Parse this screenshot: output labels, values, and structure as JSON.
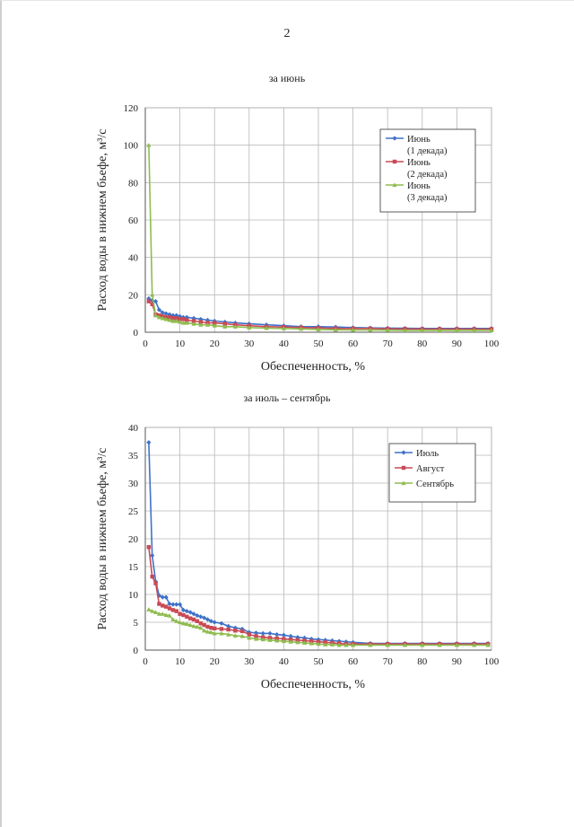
{
  "page": {
    "number": "2"
  },
  "chart_data": [
    {
      "type": "line",
      "caption": "за июнь",
      "xlabel": "Обеспеченность, %",
      "ylabel": "Расход воды в нижнем бьефе, м³/с",
      "xlim": [
        0,
        100
      ],
      "ylim": [
        0,
        120
      ],
      "xticks": [
        0,
        10,
        20,
        30,
        40,
        50,
        60,
        70,
        80,
        90,
        100
      ],
      "yticks": [
        0,
        20,
        40,
        60,
        80,
        100,
        120
      ],
      "grid": true,
      "legend_position": "top-right",
      "series": [
        {
          "name": "Июнь (1 декада)",
          "legend_lines": [
            "Июнь",
            "(1 декада)"
          ],
          "color": "#3f72c8",
          "marker": "diamond",
          "x": [
            1,
            2,
            3,
            4,
            5,
            6,
            7,
            8,
            9,
            10,
            11,
            12,
            14,
            16,
            18,
            20,
            23,
            26,
            30,
            35,
            40,
            45,
            50,
            55,
            60,
            65,
            70,
            75,
            80,
            85,
            90,
            95,
            100
          ],
          "y": [
            18,
            17,
            16.5,
            12,
            10.5,
            10,
            9.5,
            9,
            9,
            8.5,
            8,
            8,
            7.5,
            7,
            6.5,
            6,
            5.5,
            5,
            4.5,
            4,
            3.5,
            3,
            3,
            2.8,
            2.5,
            2.3,
            2.2,
            2.1,
            2,
            2,
            2,
            2,
            2
          ]
        },
        {
          "name": "Июнь (2 декада)",
          "legend_lines": [
            "Июнь",
            "(2 декада)"
          ],
          "color": "#c94a55",
          "marker": "square",
          "x": [
            1,
            2,
            3,
            4,
            5,
            6,
            7,
            8,
            9,
            10,
            11,
            12,
            14,
            16,
            18,
            20,
            23,
            26,
            30,
            35,
            40,
            45,
            50,
            55,
            60,
            65,
            70,
            75,
            80,
            85,
            90,
            95,
            100
          ],
          "y": [
            16.5,
            15,
            9.5,
            9,
            8.5,
            8,
            8,
            7.5,
            7.5,
            7,
            7,
            6.5,
            6,
            5.5,
            5,
            5,
            4.5,
            4,
            3.5,
            3,
            2.8,
            2.5,
            2.3,
            2,
            2,
            2,
            1.8,
            1.8,
            1.7,
            1.7,
            1.7,
            1.7,
            1.7
          ]
        },
        {
          "name": "Июнь (3 декада)",
          "legend_lines": [
            "Июнь",
            "(3 декада)"
          ],
          "color": "#8fbc4f",
          "marker": "triangle",
          "x": [
            1,
            2,
            3,
            4,
            5,
            6,
            7,
            8,
            9,
            10,
            11,
            12,
            14,
            16,
            18,
            20,
            23,
            26,
            30,
            35,
            40,
            45,
            50,
            55,
            60,
            65,
            70,
            75,
            80,
            85,
            90,
            95,
            100
          ],
          "y": [
            100,
            20,
            9,
            8,
            7.5,
            7,
            6.5,
            6,
            6,
            5.5,
            5,
            5,
            4.5,
            4,
            4,
            3.5,
            3,
            3,
            2.5,
            2.2,
            2,
            1.8,
            1.5,
            1.3,
            1.2,
            1.2,
            1.1,
            1,
            1,
            1,
            1,
            1,
            1
          ]
        }
      ]
    },
    {
      "type": "line",
      "caption": "за июль – сентябрь",
      "xlabel": "Обеспеченность, %",
      "ylabel": "Расход воды в нижнем бьефе, м³/с",
      "xlim": [
        0,
        100
      ],
      "ylim": [
        0,
        40
      ],
      "xticks": [
        0,
        10,
        20,
        30,
        40,
        50,
        60,
        70,
        80,
        90,
        100
      ],
      "yticks": [
        0,
        5,
        10,
        15,
        20,
        25,
        30,
        35,
        40
      ],
      "grid": true,
      "legend_position": "top-right",
      "series": [
        {
          "name": "Июль",
          "legend_lines": [
            "Июль"
          ],
          "color": "#3f72c8",
          "marker": "diamond",
          "x": [
            1,
            2,
            3,
            4,
            5,
            6,
            7,
            8,
            9,
            10,
            11,
            12,
            13,
            14,
            15,
            16,
            17,
            18,
            19,
            20,
            22,
            24,
            26,
            28,
            30,
            32,
            34,
            36,
            38,
            40,
            42,
            44,
            46,
            48,
            50,
            52,
            54,
            56,
            58,
            60,
            65,
            70,
            75,
            80,
            85,
            90,
            95,
            99
          ],
          "y": [
            37.3,
            17,
            12.3,
            9.8,
            9.5,
            9.5,
            8.3,
            8.2,
            8.2,
            8.2,
            7.2,
            7,
            6.8,
            6.5,
            6.2,
            6,
            5.8,
            5.5,
            5.2,
            5,
            4.8,
            4.3,
            4,
            3.8,
            3.2,
            3.1,
            3,
            3,
            2.8,
            2.7,
            2.5,
            2.3,
            2.2,
            2,
            1.9,
            1.8,
            1.7,
            1.6,
            1.5,
            1.4,
            1.2,
            1.2,
            1.2,
            1.2,
            1.2,
            1.2,
            1.2,
            1.2
          ]
        },
        {
          "name": "Август",
          "legend_lines": [
            "Август"
          ],
          "color": "#c94a55",
          "marker": "square",
          "x": [
            1,
            2,
            3,
            4,
            5,
            6,
            7,
            8,
            9,
            10,
            11,
            12,
            13,
            14,
            15,
            16,
            17,
            18,
            19,
            20,
            22,
            24,
            26,
            28,
            30,
            32,
            34,
            36,
            38,
            40,
            42,
            44,
            46,
            48,
            50,
            52,
            54,
            56,
            58,
            60,
            65,
            70,
            75,
            80,
            85,
            90,
            95,
            99
          ],
          "y": [
            18.5,
            13.2,
            12,
            8.3,
            8,
            7.8,
            7.5,
            7.2,
            7,
            6.5,
            6.3,
            6,
            5.7,
            5.5,
            5.2,
            4.8,
            4.5,
            4.2,
            4,
            3.9,
            3.8,
            3.7,
            3.5,
            3.4,
            2.8,
            2.5,
            2.3,
            2.2,
            2.1,
            2,
            1.9,
            1.8,
            1.7,
            1.6,
            1.5,
            1.4,
            1.3,
            1.2,
            1.1,
            1.1,
            1.1,
            1.1,
            1.1,
            1.1,
            1.1,
            1.1,
            1.1,
            1.1
          ]
        },
        {
          "name": "Сентябрь",
          "legend_lines": [
            "Сентябрь"
          ],
          "color": "#8fbc4f",
          "marker": "triangle",
          "x": [
            1,
            2,
            3,
            4,
            5,
            6,
            7,
            8,
            9,
            10,
            11,
            12,
            13,
            14,
            15,
            16,
            17,
            18,
            19,
            20,
            22,
            24,
            26,
            28,
            30,
            32,
            34,
            36,
            38,
            40,
            42,
            44,
            46,
            48,
            50,
            52,
            54,
            56,
            58,
            60,
            65,
            70,
            75,
            80,
            85,
            90,
            95,
            99
          ],
          "y": [
            7.3,
            7,
            6.8,
            6.5,
            6.5,
            6.3,
            6.2,
            5.5,
            5.2,
            5,
            4.8,
            4.7,
            4.5,
            4.3,
            4.2,
            4,
            3.5,
            3.3,
            3.2,
            3,
            3,
            2.8,
            2.6,
            2.5,
            2.2,
            2,
            1.9,
            1.8,
            1.7,
            1.6,
            1.5,
            1.4,
            1.3,
            1.2,
            1.1,
            1,
            1,
            0.9,
            0.9,
            0.9,
            0.9,
            0.9,
            0.9,
            0.9,
            0.9,
            0.9,
            0.9,
            0.9
          ]
        }
      ]
    }
  ]
}
